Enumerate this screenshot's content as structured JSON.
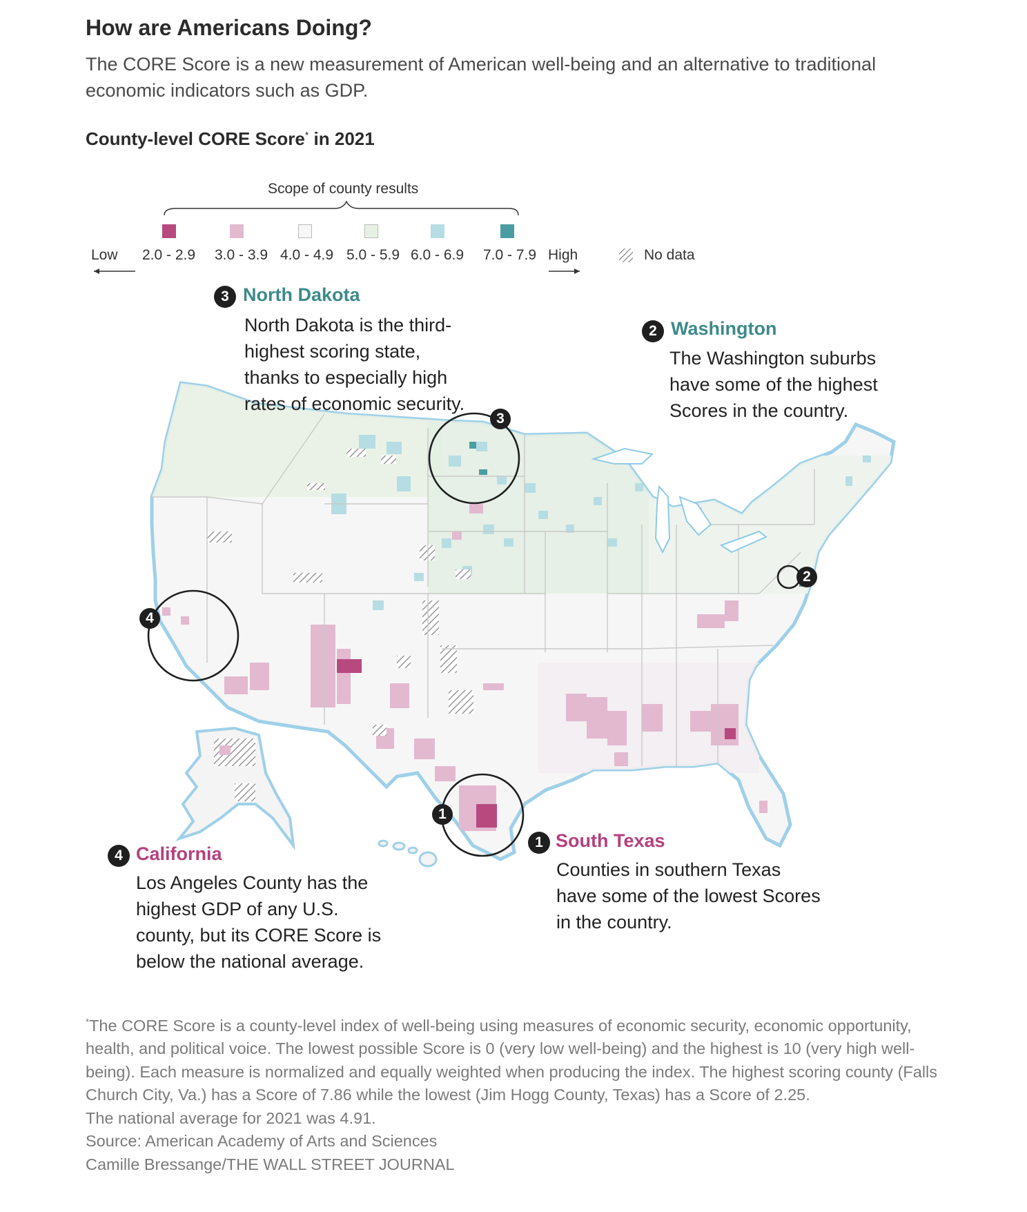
{
  "header": {
    "title": "How are Americans Doing?",
    "subtitle": "The CORE Score is a new measurement of American well-being and an alternative to traditional economic indicators such as GDP."
  },
  "map": {
    "title_main": "County-level CORE Score",
    "title_marker": "*",
    "title_suffix": " in 2021"
  },
  "legend": {
    "heading": "Scope of county results",
    "low_label": "Low",
    "high_label": "High",
    "no_data_label": "No data",
    "bins": [
      {
        "label": "2.0 - 2.9",
        "color": "#b8497f"
      },
      {
        "label": "3.0 - 3.9",
        "color": "#e3b9d0"
      },
      {
        "label": "4.0 - 4.9",
        "color": "#f7f7f7"
      },
      {
        "label": "5.0 - 5.9",
        "color": "#e6f1e4"
      },
      {
        "label": "6.0 - 6.9",
        "color": "#b6dde3"
      },
      {
        "label": "7.0 - 7.9",
        "color": "#4a9ea3"
      }
    ]
  },
  "annotations": [
    {
      "number": "3",
      "heading": "North Dakota",
      "body": "North Dakota is the third-highest scoring state, thanks to especially high rates of economic security.",
      "lines": [
        "North Dakota is the third-",
        "highest scoring state,",
        "thanks to especially high",
        "rates of economic security."
      ]
    },
    {
      "number": "2",
      "heading": "Washington",
      "body": "The Washington suburbs have some of the highest Scores in the country.",
      "lines": [
        "The Washington suburbs",
        "have some of the highest",
        "Scores in the country."
      ]
    },
    {
      "number": "4",
      "heading": "California",
      "body": "Los Angeles County has the highest GDP of any U.S. county, but its CORE Score is below the national average.",
      "lines": [
        "Los Angeles County has the",
        "highest GDP of any U.S.",
        "county, but its CORE Score is",
        "below the national average."
      ]
    },
    {
      "number": "1",
      "heading": "South Texas",
      "body": "Counties in southern Texas have some of the lowest Scores in the country.",
      "lines": [
        "Counties in southern Texas",
        "have some of the lowest Scores",
        "in the country."
      ]
    }
  ],
  "footnote": {
    "marker": "*",
    "text": "The CORE Score is a county-level index of well-being using measures of economic security, economic opportunity, health, and political voice. The lowest possible Score is 0 (very low well-being) and the highest is 10 (very high well-being). Each measure is normalized and equally weighted when producing the index. The highest scoring county (Falls Church City, Va.) has a Score of 7.86 while the lowest (Jim Hogg County, Texas) has a Score of 2.25.",
    "average": "The national average for 2021 was 4.91.",
    "source": "Source: American Academy of Arts and Sciences",
    "credit": "Camille Bressange/THE WALL STREET JOURNAL"
  }
}
